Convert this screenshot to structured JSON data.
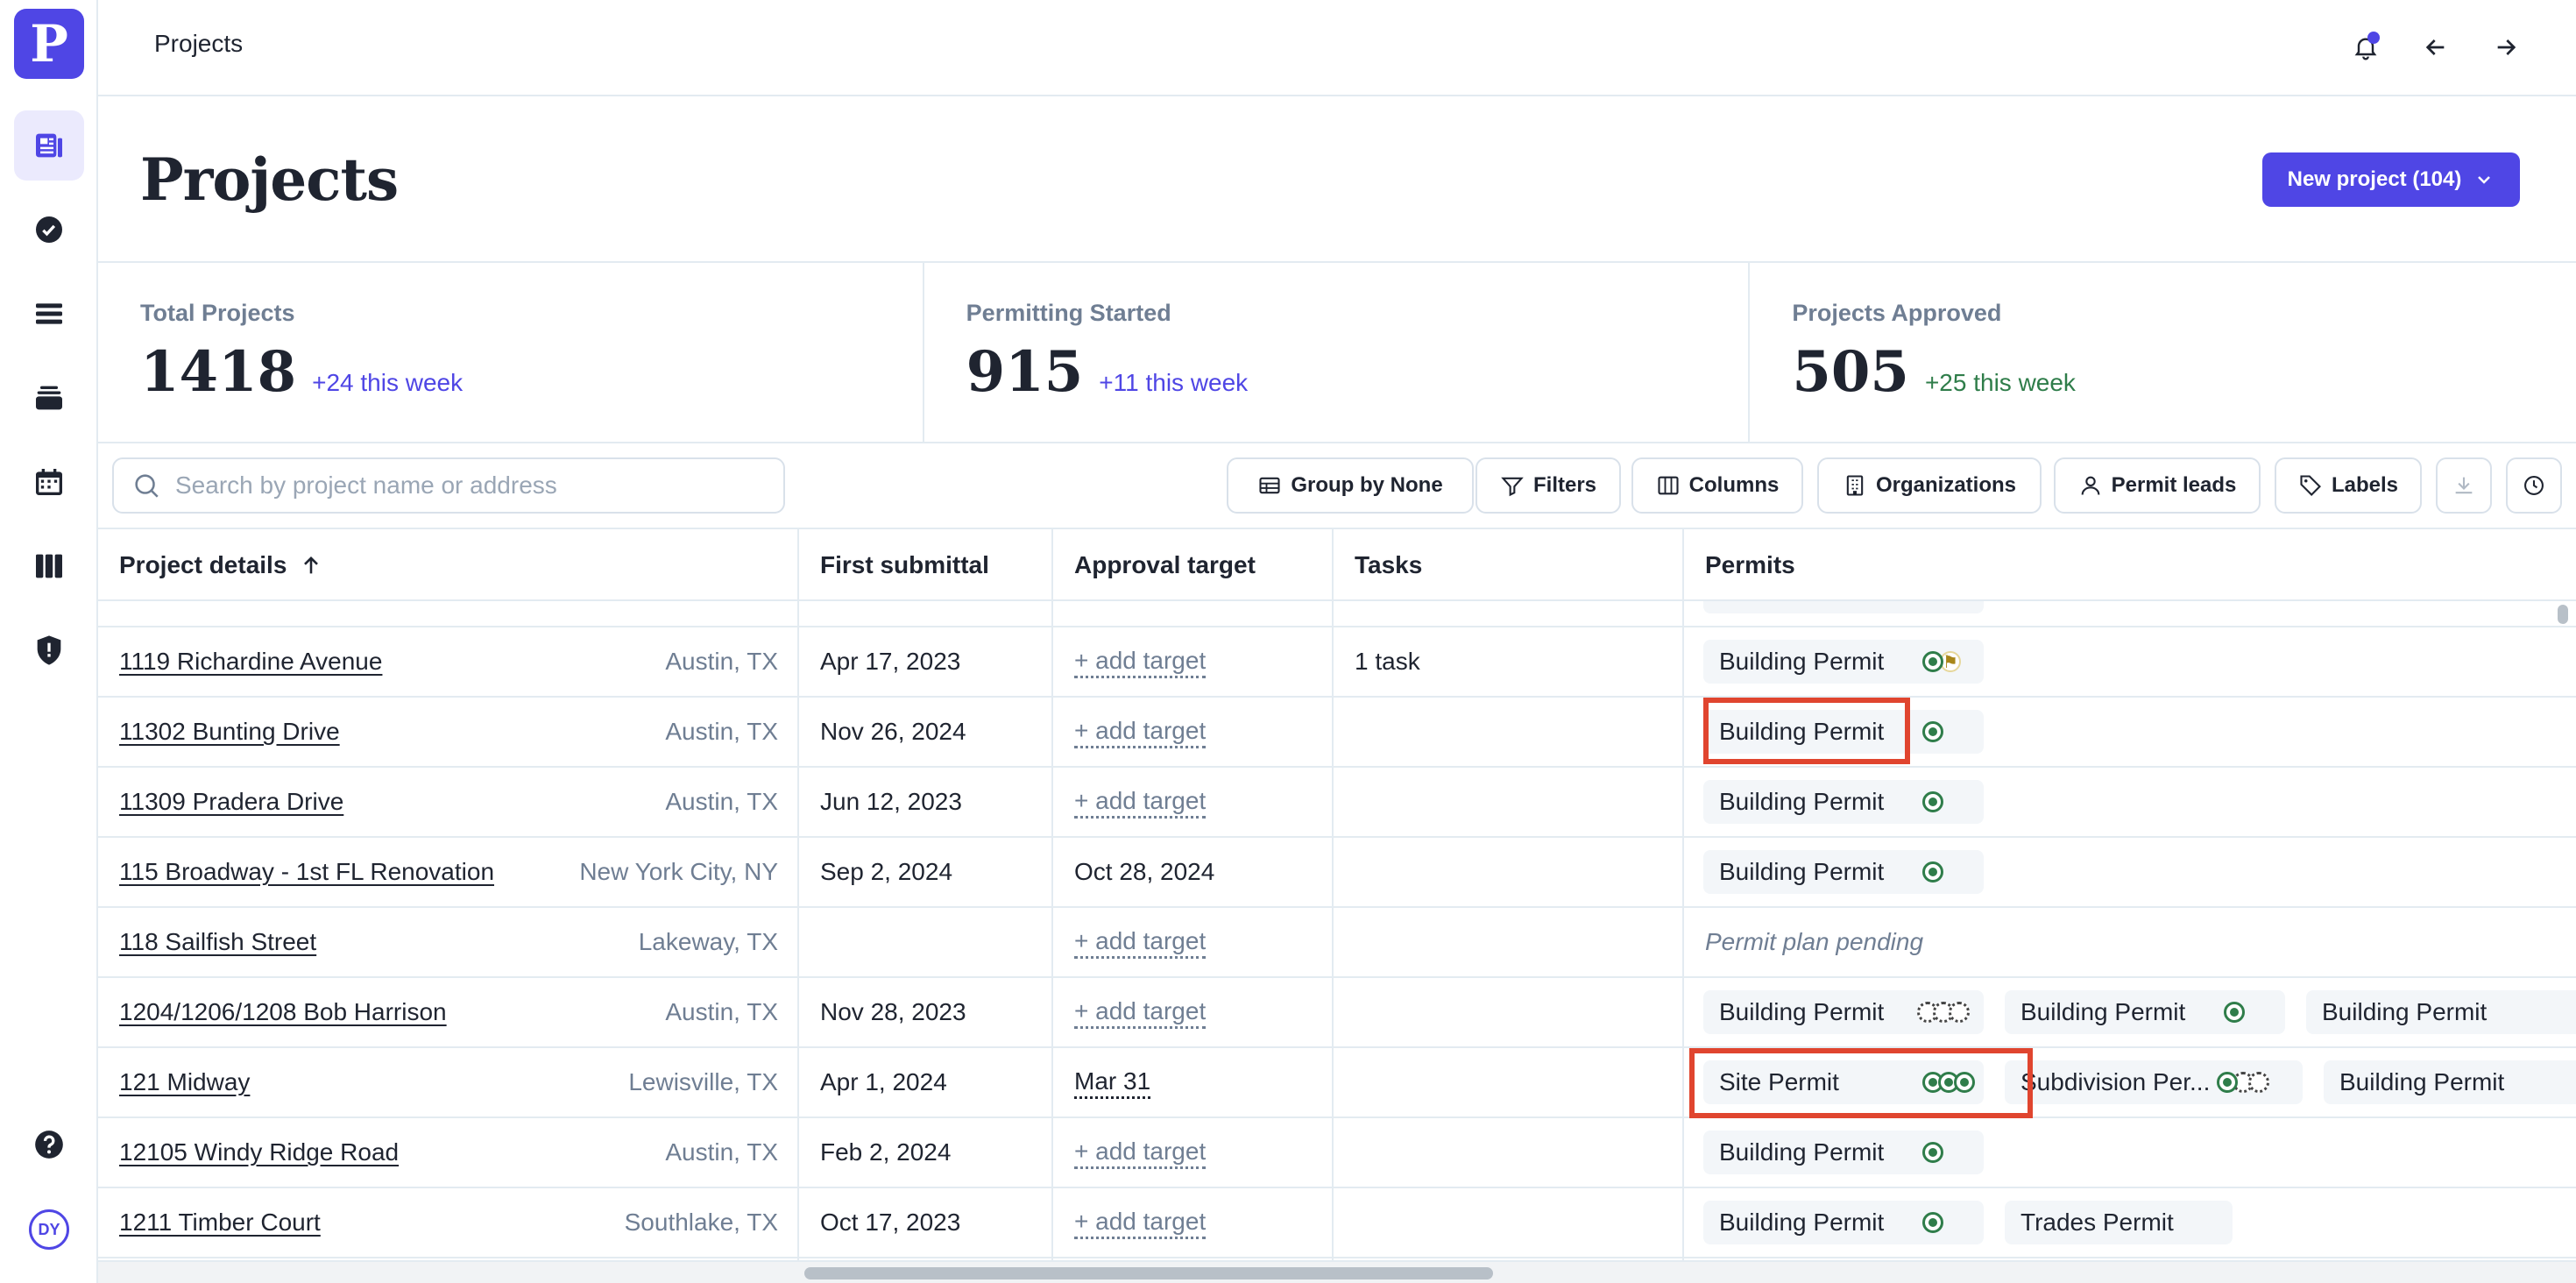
{
  "app": {
    "logo_letter": "P",
    "user_initials": "DY"
  },
  "topbar": {
    "title": "Projects"
  },
  "header": {
    "title": "Projects",
    "new_project_label": "New project (104)"
  },
  "stats": [
    {
      "label": "Total Projects",
      "value": "1418",
      "delta": "+24 this week"
    },
    {
      "label": "Permitting Started",
      "value": "915",
      "delta": "+11 this week"
    },
    {
      "label": "Projects Approved",
      "value": "505",
      "delta": "+25 this week"
    }
  ],
  "search": {
    "placeholder": "Search by project name or address"
  },
  "toolbar": {
    "group_by": "Group by None",
    "filters": "Filters",
    "columns": "Columns",
    "organizations": "Organizations",
    "permit_leads": "Permit leads",
    "labels": "Labels"
  },
  "table": {
    "headers": [
      "Project details",
      "First submittal",
      "Approval target",
      "Tasks",
      "Permits"
    ],
    "rows": [
      {
        "name": "1119 Richardine Avenue",
        "location": "Austin, TX",
        "first_submittal": "Apr 17, 2023",
        "approval_target": "+ add target",
        "tasks": "1 task",
        "permits": [
          {
            "label": "Building Permit",
            "status": [
              "ok",
              "flag"
            ]
          }
        ]
      },
      {
        "name": "11302 Bunting Drive",
        "location": "Austin, TX",
        "first_submittal": "Nov 26, 2024",
        "approval_target": "+ add target",
        "tasks": "",
        "permits": [
          {
            "label": "Building Permit",
            "status": [
              "ok"
            ]
          }
        ]
      },
      {
        "name": "11309 Pradera Drive",
        "location": "Austin, TX",
        "first_submittal": "Jun 12, 2023",
        "approval_target": "+ add target",
        "tasks": "",
        "permits": [
          {
            "label": "Building Permit",
            "status": [
              "ok"
            ]
          }
        ]
      },
      {
        "name": "115 Broadway - 1st FL Renovation",
        "location": "New York City, NY",
        "first_submittal": "Sep 2, 2024",
        "approval_target": "Oct 28, 2024",
        "tasks": "",
        "permits": [
          {
            "label": "Building Permit",
            "status": [
              "ok"
            ]
          }
        ]
      },
      {
        "name": "118 Sailfish Street",
        "location": "Lakeway, TX",
        "first_submittal": "",
        "approval_target": "+ add target",
        "tasks": "",
        "permits_note": "Permit plan pending",
        "permits": []
      },
      {
        "name": "1204/1206/1208 Bob Harrison",
        "location": "Austin, TX",
        "first_submittal": "Nov 28, 2023",
        "approval_target": "+ add target",
        "tasks": "",
        "permits": [
          {
            "label": "Building Permit",
            "status": [
              "empty",
              "empty",
              "empty"
            ]
          },
          {
            "label": "Building Permit",
            "status": [
              "ok"
            ]
          },
          {
            "label": "Building Permit",
            "status": []
          }
        ]
      },
      {
        "name": "121 Midway",
        "location": "Lewisville, TX",
        "first_submittal": "Apr 1, 2024",
        "approval_target": "Mar 31",
        "tasks": "",
        "permits": [
          {
            "label": "Site Permit",
            "status": [
              "ok",
              "half",
              "half"
            ]
          },
          {
            "label": "Subdivision Per...",
            "status": [
              "ok",
              "empty",
              "empty"
            ]
          },
          {
            "label": "Building Permit",
            "status": []
          }
        ]
      },
      {
        "name": "12105 Windy Ridge Road",
        "location": "Austin, TX",
        "first_submittal": "Feb 2, 2024",
        "approval_target": "+ add target",
        "tasks": "",
        "permits": [
          {
            "label": "Building Permit",
            "status": [
              "ok"
            ]
          }
        ]
      },
      {
        "name": "1211 Timber Court",
        "location": "Southlake, TX",
        "first_submittal": "Oct 17, 2023",
        "approval_target": "+ add target",
        "tasks": "",
        "permits": [
          {
            "label": "Building Permit",
            "status": [
              "ok"
            ]
          },
          {
            "label": "Trades Permit",
            "status": []
          }
        ]
      }
    ]
  },
  "colors": {
    "accent": "#4f46e5",
    "success": "#2f7d4a",
    "highlight": "#e0452f"
  }
}
